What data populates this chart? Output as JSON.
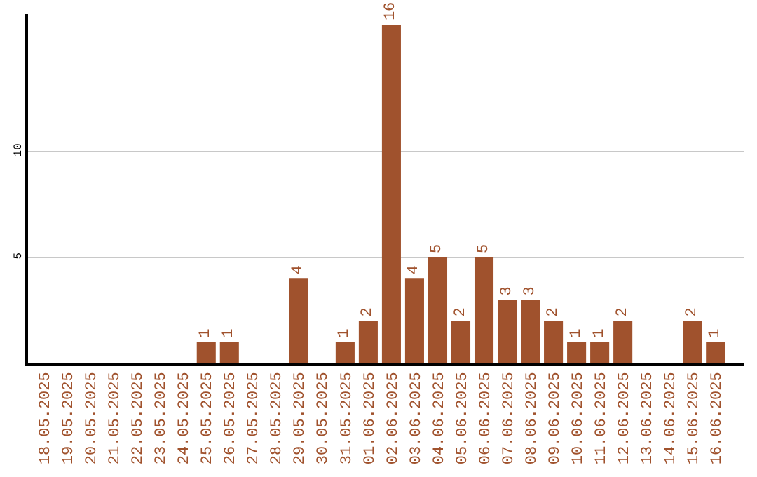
{
  "chart_data": {
    "type": "bar",
    "categories": [
      "18.05.2025",
      "19.05.2025",
      "20.05.2025",
      "21.05.2025",
      "22.05.2025",
      "23.05.2025",
      "24.05.2025",
      "25.05.2025",
      "26.05.2025",
      "27.05.2025",
      "28.05.2025",
      "29.05.2025",
      "30.05.2025",
      "31.05.2025",
      "01.06.2025",
      "02.06.2025",
      "03.06.2025",
      "04.06.2025",
      "05.06.2025",
      "06.06.2025",
      "07.06.2025",
      "08.06.2025",
      "09.06.2025",
      "10.06.2025",
      "11.06.2025",
      "12.06.2025",
      "13.06.2025",
      "14.06.2025",
      "15.06.2025",
      "16.06.2025"
    ],
    "values": [
      0,
      0,
      0,
      0,
      0,
      0,
      0,
      1,
      1,
      0,
      0,
      4,
      0,
      1,
      2,
      16,
      4,
      5,
      2,
      5,
      3,
      3,
      2,
      1,
      1,
      2,
      0,
      0,
      2,
      1
    ],
    "value_labels": [
      null,
      null,
      null,
      null,
      null,
      null,
      null,
      "1",
      "1",
      null,
      null,
      "4",
      null,
      "1",
      "2",
      "16",
      "4",
      "5",
      "2",
      "5",
      "3",
      "3",
      "2",
      "1",
      "1",
      "2",
      null,
      null,
      "2",
      "1"
    ],
    "color": "#a0522d",
    "ylim": [
      0,
      16.5
    ],
    "yticks": [
      5,
      10
    ],
    "grid": "y"
  }
}
